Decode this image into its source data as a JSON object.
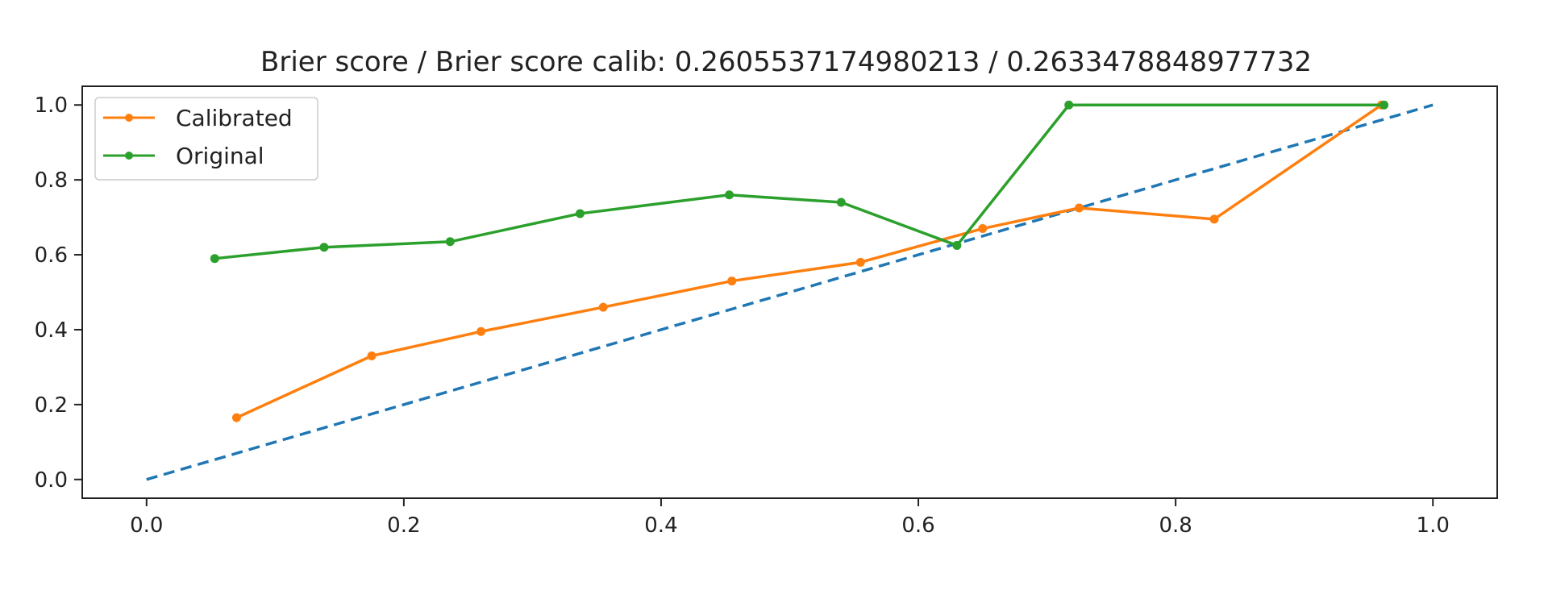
{
  "chart_data": {
    "type": "line",
    "title": "Brier score / Brier score calib: 0.2605537174980213 / 0.2633478848977732",
    "xlabel": "",
    "ylabel": "",
    "xlim": [
      -0.05,
      1.05
    ],
    "ylim": [
      -0.05,
      1.05
    ],
    "x_ticks": [
      "0.0",
      "0.2",
      "0.4",
      "0.6",
      "0.8",
      "1.0"
    ],
    "x_tick_values": [
      0.0,
      0.2,
      0.4,
      0.6,
      0.8,
      1.0
    ],
    "y_ticks": [
      "0.0",
      "0.2",
      "0.4",
      "0.6",
      "0.8",
      "1.0"
    ],
    "y_tick_values": [
      0.0,
      0.2,
      0.4,
      0.6,
      0.8,
      1.0
    ],
    "grid": false,
    "legend_position": "top-left",
    "reference_line": {
      "x": [
        0.0,
        1.0
      ],
      "y": [
        0.0,
        1.0
      ],
      "style": "dashed",
      "color": "#1f77b4"
    },
    "series": [
      {
        "name": "Calibrated",
        "color": "#ff7f0e",
        "marker": "point",
        "x": [
          0.07,
          0.175,
          0.26,
          0.355,
          0.455,
          0.555,
          0.65,
          0.725,
          0.83,
          0.96
        ],
        "y": [
          0.165,
          0.33,
          0.395,
          0.46,
          0.53,
          0.58,
          0.67,
          0.725,
          0.695,
          1.0
        ]
      },
      {
        "name": "Original",
        "color": "#2ca02c",
        "marker": "point",
        "x": [
          0.053,
          0.138,
          0.236,
          0.337,
          0.453,
          0.54,
          0.63,
          0.717,
          0.962
        ],
        "y": [
          0.59,
          0.62,
          0.635,
          0.71,
          0.76,
          0.74,
          0.625,
          1.0,
          1.0
        ]
      }
    ]
  }
}
